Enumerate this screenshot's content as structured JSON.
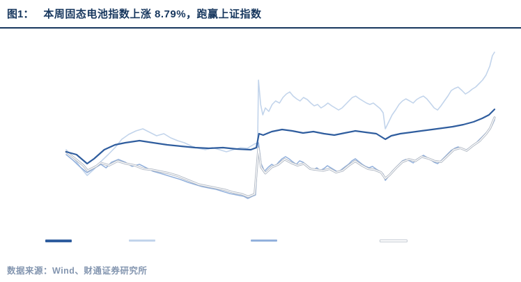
{
  "header": {
    "figure_label": "图1：",
    "title": "本周固态电池指数上涨 8.79%，跑赢上证指数"
  },
  "footer": {
    "source": "数据来源：Wind、财通证券研究所"
  },
  "colors": {
    "title_navy": "#17375E",
    "rule_navy": "#17375E",
    "source_text": "#8496B0",
    "line_dark_blue": "#2F5D9E",
    "line_light_blue": "#C2D4EB",
    "line_medium_blue": "#93B1DC",
    "line_white": "#FFFFFF",
    "line_white_outline": "#AEB6C2"
  },
  "chart_data": {
    "type": "line",
    "title": "本周固态电池指数上涨 8.79%，跑赢上证指数",
    "xlabel": "",
    "ylabel": "",
    "note": "No axis ticks or gridlines are rendered in the figure; legend labels are not legible. x = percent of time axis (left to right), y = relative indexed level as percent of plot height (0 = bottom, 100 = top).",
    "grid": false,
    "legend_position": "bottom",
    "legend": [
      {
        "swatch": "#2F5D9E",
        "label": ""
      },
      {
        "swatch": "#C2D4EB",
        "label": ""
      },
      {
        "swatch": "#93B1DC",
        "label": ""
      },
      {
        "swatch": "#FFFFFF",
        "outline": "#C3C9D2",
        "label": ""
      }
    ],
    "series": [
      {
        "name": "light-blue-volatile-index",
        "color": "#C2D4EB",
        "width": 1.6,
        "points": [
          [
            0,
            42
          ],
          [
            1.6,
            38
          ],
          [
            3.3,
            32
          ],
          [
            4.9,
            27.2
          ],
          [
            6.5,
            30.8
          ],
          [
            8.1,
            35.2
          ],
          [
            9.8,
            39.2
          ],
          [
            11.4,
            43.2
          ],
          [
            13,
            48
          ],
          [
            14.6,
            50.8
          ],
          [
            16.3,
            52.8
          ],
          [
            17.9,
            54
          ],
          [
            19.5,
            52
          ],
          [
            21.1,
            50
          ],
          [
            22.8,
            51.2
          ],
          [
            24.4,
            48.8
          ],
          [
            26,
            47.2
          ],
          [
            27.6,
            46
          ],
          [
            29.3,
            44
          ],
          [
            30.9,
            42.8
          ],
          [
            32.5,
            42
          ],
          [
            34.1,
            43.2
          ],
          [
            35.8,
            42
          ],
          [
            37.4,
            40.8
          ],
          [
            39,
            42
          ],
          [
            40.7,
            43.2
          ],
          [
            42.3,
            42.8
          ],
          [
            43.9,
            45.2
          ],
          [
            44.7,
            46
          ],
          [
            44.9,
            82
          ],
          [
            45.4,
            68
          ],
          [
            45.9,
            62
          ],
          [
            46.5,
            66
          ],
          [
            47.3,
            64
          ],
          [
            48.1,
            68
          ],
          [
            48.9,
            70
          ],
          [
            49.8,
            68.8
          ],
          [
            50.6,
            72
          ],
          [
            51.4,
            74
          ],
          [
            52.2,
            75.2
          ],
          [
            53,
            72.8
          ],
          [
            53.8,
            71.2
          ],
          [
            54.6,
            70
          ],
          [
            55.4,
            72
          ],
          [
            56.3,
            70.8
          ],
          [
            57.1,
            68.8
          ],
          [
            57.9,
            67.2
          ],
          [
            58.7,
            68
          ],
          [
            59.5,
            66
          ],
          [
            60.3,
            67.2
          ],
          [
            61.1,
            68.8
          ],
          [
            62,
            67.2
          ],
          [
            62.8,
            66
          ],
          [
            63.6,
            64.8
          ],
          [
            64.4,
            66
          ],
          [
            65.2,
            68
          ],
          [
            66,
            70
          ],
          [
            66.8,
            72
          ],
          [
            67.6,
            72.8
          ],
          [
            68.5,
            71.2
          ],
          [
            69.3,
            70
          ],
          [
            70.1,
            68.8
          ],
          [
            70.9,
            68
          ],
          [
            71.7,
            68.8
          ],
          [
            72.5,
            67.2
          ],
          [
            73.3,
            65.6
          ],
          [
            74,
            63.2
          ],
          [
            74.5,
            54
          ],
          [
            75.3,
            58
          ],
          [
            76.1,
            62
          ],
          [
            76.9,
            64.8
          ],
          [
            77.7,
            68
          ],
          [
            78.5,
            70
          ],
          [
            79.3,
            71.2
          ],
          [
            80.2,
            70
          ],
          [
            81,
            68.8
          ],
          [
            81.8,
            70.8
          ],
          [
            82.6,
            72
          ],
          [
            83.4,
            72.8
          ],
          [
            84.2,
            71.2
          ],
          [
            85,
            68.8
          ],
          [
            85.9,
            66
          ],
          [
            86.7,
            64.8
          ],
          [
            87.5,
            67.2
          ],
          [
            88.3,
            70
          ],
          [
            89.1,
            72.8
          ],
          [
            89.9,
            76
          ],
          [
            90.7,
            77.2
          ],
          [
            91.5,
            78
          ],
          [
            92.4,
            76
          ],
          [
            93.2,
            74
          ],
          [
            94,
            75.2
          ],
          [
            94.8,
            76.8
          ],
          [
            95.6,
            78
          ],
          [
            96.4,
            80
          ],
          [
            97.2,
            82
          ],
          [
            98,
            84.8
          ],
          [
            98.9,
            90
          ],
          [
            99.5,
            96
          ],
          [
            100,
            98
          ]
        ]
      },
      {
        "name": "medium-blue-index",
        "color": "#93B1DC",
        "width": 1.6,
        "points": [
          [
            0,
            39.2
          ],
          [
            1.6,
            36
          ],
          [
            3.3,
            32
          ],
          [
            4.9,
            28.8
          ],
          [
            6.5,
            31.2
          ],
          [
            8.1,
            33.6
          ],
          [
            9.3,
            31.6
          ],
          [
            10.6,
            34.8
          ],
          [
            12.2,
            36.4
          ],
          [
            13.8,
            34.8
          ],
          [
            15.4,
            32.4
          ],
          [
            17.1,
            33.6
          ],
          [
            18.7,
            31.6
          ],
          [
            20.3,
            29.6
          ],
          [
            22,
            28.4
          ],
          [
            23.6,
            27.2
          ],
          [
            25.2,
            26
          ],
          [
            26.8,
            24.8
          ],
          [
            28.5,
            23.2
          ],
          [
            30.1,
            22
          ],
          [
            31.7,
            20.8
          ],
          [
            33.3,
            20
          ],
          [
            35,
            19.2
          ],
          [
            36.6,
            18
          ],
          [
            38.2,
            16.8
          ],
          [
            39.8,
            16
          ],
          [
            41.5,
            15.2
          ],
          [
            42.4,
            14
          ],
          [
            43.4,
            15.2
          ],
          [
            44.2,
            16
          ],
          [
            44.9,
            46
          ],
          [
            45.5,
            34
          ],
          [
            46.3,
            29.6
          ],
          [
            47.2,
            32
          ],
          [
            48,
            33.6
          ],
          [
            48.8,
            32.4
          ],
          [
            49.6,
            34.8
          ],
          [
            50.4,
            36.8
          ],
          [
            51.2,
            38
          ],
          [
            52,
            36.8
          ],
          [
            52.8,
            35.2
          ],
          [
            53.7,
            33.6
          ],
          [
            54.5,
            35.6
          ],
          [
            55.3,
            34.8
          ],
          [
            56.1,
            33.2
          ],
          [
            56.9,
            31.6
          ],
          [
            57.7,
            30.4
          ],
          [
            58.5,
            31.6
          ],
          [
            59.3,
            30
          ],
          [
            60.2,
            31.2
          ],
          [
            61,
            32.8
          ],
          [
            61.8,
            31.6
          ],
          [
            62.6,
            30.4
          ],
          [
            63.4,
            29.2
          ],
          [
            64.2,
            30.4
          ],
          [
            65,
            32
          ],
          [
            65.9,
            33.6
          ],
          [
            66.7,
            35.6
          ],
          [
            67.5,
            36.8
          ],
          [
            68.3,
            35.2
          ],
          [
            69.1,
            33.6
          ],
          [
            69.9,
            32.4
          ],
          [
            70.7,
            31.6
          ],
          [
            71.5,
            32.4
          ],
          [
            72.4,
            30.8
          ],
          [
            73.2,
            29.6
          ],
          [
            74,
            28
          ],
          [
            74.5,
            24.4
          ],
          [
            75.3,
            26.8
          ],
          [
            76.1,
            29.6
          ],
          [
            76.9,
            31.6
          ],
          [
            77.7,
            33.6
          ],
          [
            78.5,
            35.6
          ],
          [
            79.3,
            36.4
          ],
          [
            80.2,
            35.6
          ],
          [
            81,
            34.4
          ],
          [
            81.8,
            36.4
          ],
          [
            82.6,
            37.6
          ],
          [
            83.4,
            38.8
          ],
          [
            84.2,
            37.6
          ],
          [
            85,
            36.4
          ],
          [
            85.9,
            34.8
          ],
          [
            86.7,
            34
          ],
          [
            87.5,
            35.6
          ],
          [
            88.3,
            37.6
          ],
          [
            89.1,
            39.6
          ],
          [
            89.9,
            41.6
          ],
          [
            90.7,
            42.8
          ],
          [
            91.5,
            43.6
          ],
          [
            92.4,
            42.4
          ],
          [
            93.2,
            41.6
          ],
          [
            94,
            42.8
          ],
          [
            94.8,
            44.4
          ],
          [
            95.6,
            45.6
          ],
          [
            96.4,
            47.6
          ],
          [
            97.2,
            49.6
          ],
          [
            98,
            51.6
          ],
          [
            98.9,
            53.6
          ],
          [
            99.5,
            56.4
          ],
          [
            100,
            59.2
          ]
        ]
      },
      {
        "name": "white-index",
        "color": "#FFFFFF",
        "outline": "#AEB6C2",
        "width": 1.3,
        "points": [
          [
            0,
            40.8
          ],
          [
            2,
            37
          ],
          [
            4,
            33
          ],
          [
            5,
            30
          ],
          [
            7,
            32.5
          ],
          [
            8,
            34.5
          ],
          [
            10,
            33
          ],
          [
            12,
            35.5
          ],
          [
            14,
            34
          ],
          [
            16,
            33
          ],
          [
            18,
            31
          ],
          [
            20,
            30.5
          ],
          [
            22,
            29.5
          ],
          [
            24,
            28.5
          ],
          [
            26,
            27
          ],
          [
            28.5,
            24.5
          ],
          [
            31,
            22
          ],
          [
            33,
            21
          ],
          [
            35,
            20
          ],
          [
            37,
            19
          ],
          [
            39,
            17.5
          ],
          [
            41,
            16.5
          ],
          [
            42.5,
            15
          ],
          [
            44,
            16.5
          ],
          [
            44.9,
            43
          ],
          [
            45.5,
            32
          ],
          [
            46.5,
            28.5
          ],
          [
            48,
            32
          ],
          [
            49.5,
            33.5
          ],
          [
            51,
            36.5
          ],
          [
            52.5,
            34.5
          ],
          [
            54,
            33
          ],
          [
            55.5,
            34
          ],
          [
            57,
            31
          ],
          [
            58.5,
            30.5
          ],
          [
            60,
            30
          ],
          [
            61.5,
            31
          ],
          [
            63,
            29
          ],
          [
            64.5,
            30
          ],
          [
            66,
            33
          ],
          [
            67.5,
            35.5
          ],
          [
            69,
            33
          ],
          [
            70.5,
            31
          ],
          [
            72,
            30.5
          ],
          [
            73.5,
            29
          ],
          [
            74.5,
            25.5
          ],
          [
            75.5,
            27.5
          ],
          [
            77,
            31.5
          ],
          [
            78.5,
            35
          ],
          [
            80,
            36.5
          ],
          [
            81.5,
            35.5
          ],
          [
            83,
            38
          ],
          [
            84.5,
            37
          ],
          [
            86,
            35.5
          ],
          [
            87.5,
            35
          ],
          [
            89,
            38.5
          ],
          [
            90.5,
            42
          ],
          [
            92,
            43
          ],
          [
            93.5,
            41.5
          ],
          [
            95,
            44.5
          ],
          [
            96.5,
            47
          ],
          [
            98,
            51
          ],
          [
            99,
            54.5
          ],
          [
            100,
            60.5
          ]
        ]
      },
      {
        "name": "dark-blue-index",
        "color": "#2F5D9E",
        "width": 2.2,
        "points": [
          [
            0,
            40.8
          ],
          [
            2.4,
            39.2
          ],
          [
            4.9,
            34
          ],
          [
            6.5,
            36.8
          ],
          [
            8.9,
            42
          ],
          [
            11.4,
            44.8
          ],
          [
            13.8,
            46
          ],
          [
            17.1,
            47.2
          ],
          [
            20.3,
            46
          ],
          [
            23.6,
            44.8
          ],
          [
            26.8,
            44
          ],
          [
            30.1,
            43.2
          ],
          [
            33.3,
            42.8
          ],
          [
            36.6,
            43.2
          ],
          [
            39.8,
            42.4
          ],
          [
            43.1,
            42
          ],
          [
            44.4,
            43.2
          ],
          [
            45,
            51.2
          ],
          [
            46,
            50.4
          ],
          [
            48,
            52.4
          ],
          [
            50.4,
            53.6
          ],
          [
            52.8,
            52.8
          ],
          [
            55.3,
            51.6
          ],
          [
            57.7,
            52.4
          ],
          [
            60.2,
            51.2
          ],
          [
            62.6,
            50.4
          ],
          [
            65,
            51.6
          ],
          [
            67.5,
            52.8
          ],
          [
            69.9,
            52
          ],
          [
            72.4,
            51.2
          ],
          [
            74.5,
            48
          ],
          [
            75.9,
            50
          ],
          [
            78,
            51.2
          ],
          [
            80.5,
            52
          ],
          [
            82.9,
            52.8
          ],
          [
            85.4,
            53.6
          ],
          [
            87.8,
            54.4
          ],
          [
            90.2,
            55.2
          ],
          [
            92.7,
            56.4
          ],
          [
            95.1,
            58
          ],
          [
            97.1,
            60
          ],
          [
            98.7,
            62
          ],
          [
            100,
            65.2
          ]
        ]
      }
    ]
  }
}
